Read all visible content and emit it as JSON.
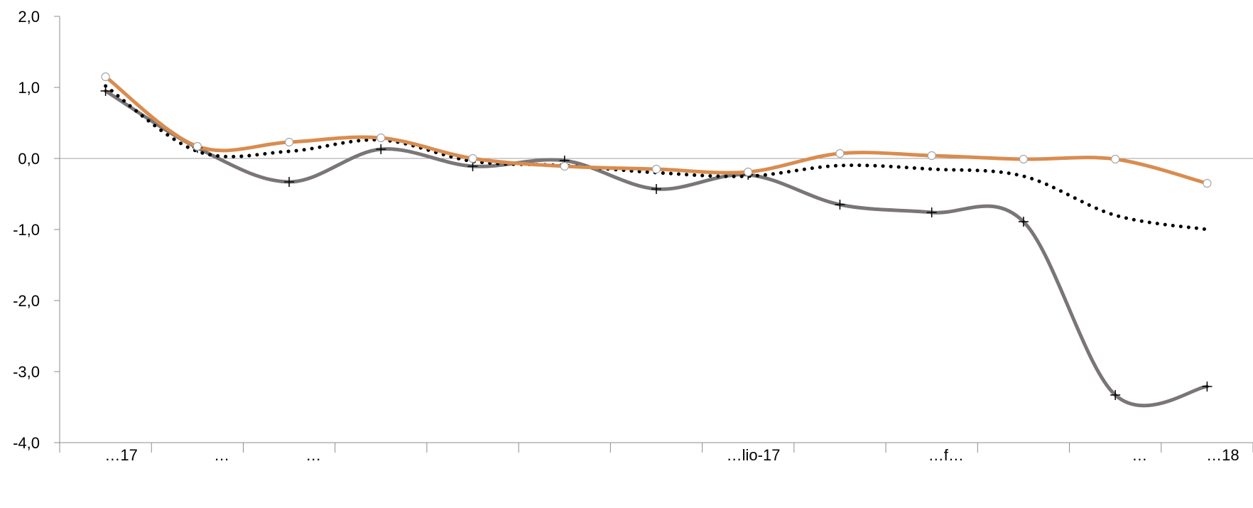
{
  "chart_data": {
    "type": "line",
    "title": "",
    "xlabel": "",
    "ylabel": "",
    "ylim": [
      -4.0,
      2.0
    ],
    "y_ticks": [
      "2,0",
      "1,0",
      "0,0",
      "-1,0",
      "-2,0",
      "-3,0",
      "-4,0"
    ],
    "categories": [
      "",
      "",
      "",
      "",
      "",
      "",
      "",
      "",
      "",
      "",
      "",
      "",
      ""
    ],
    "x_tick_labels": [
      "…17",
      "…",
      "…",
      "",
      "",
      "",
      "",
      "…lio-17",
      "",
      "…f…",
      "",
      "…",
      "…18"
    ],
    "grid": false,
    "legend": "none",
    "series": [
      {
        "values": [
          0.95,
          0.15,
          -0.33,
          0.13,
          -0.11,
          -0.03,
          -0.43,
          -0.23,
          -0.65,
          -0.76,
          -0.89,
          -3.33,
          -3.21
        ]
      },
      {
        "values": [
          1.02,
          0.1,
          0.1,
          0.26,
          -0.04,
          -0.1,
          -0.2,
          -0.25,
          -0.1,
          -0.15,
          -0.25,
          -0.8,
          -1.0
        ]
      },
      {
        "values": [
          1.15,
          0.17,
          0.23,
          0.29,
          0.0,
          -0.11,
          -0.15,
          -0.19,
          0.07,
          0.04,
          -0.01,
          -0.01,
          -0.35
        ]
      }
    ],
    "colors": {
      "series_0": "#7a7677",
      "series_1": "#000000",
      "series_2": "#d98c4f",
      "zero_line": "#a0a0a0",
      "axis": "#8c8c8c"
    }
  }
}
